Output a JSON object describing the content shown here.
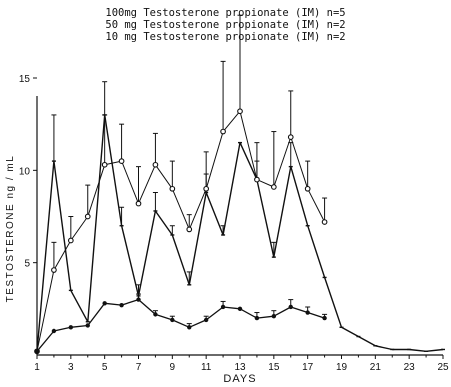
{
  "chart_data": {
    "type": "line",
    "title": "",
    "xlabel": "DAYS",
    "ylabel": "TESTOSTERONE  ng / mL",
    "xlim": [
      1,
      25
    ],
    "ylim": [
      0,
      15
    ],
    "x_ticks": [
      1,
      3,
      5,
      7,
      9,
      11,
      13,
      15,
      17,
      19,
      21,
      23,
      25
    ],
    "x_minor_ticks": [
      2,
      4,
      6,
      8,
      10,
      12,
      14,
      16,
      18,
      20,
      22,
      24
    ],
    "y_ticks": [
      5,
      10,
      15
    ],
    "grid": false,
    "legend": [
      "100mg  Testosterone  propionate (IM)  n=5",
      "50 mg  Testosterone  propionate (IM)  n=2",
      "10 mg  Testosterone  propionate (IM)  n=2"
    ],
    "series": [
      {
        "x": [
          1,
          2,
          3,
          4,
          5,
          6,
          7,
          8,
          9,
          10,
          11,
          12,
          13,
          14,
          15,
          16,
          17,
          18,
          19,
          20,
          21,
          22,
          23,
          24,
          25
        ],
        "values": [
          0.2,
          10.5,
          3.5,
          1.8,
          13.0,
          7.0,
          3.2,
          7.8,
          6.5,
          3.8,
          8.8,
          6.5,
          11.5,
          9.5,
          5.3,
          10.2,
          7.0,
          4.2,
          1.5,
          1.0,
          0.5,
          0.3,
          0.3,
          0.2,
          0.3
        ],
        "errors": [
          0,
          2.5,
          0,
          0,
          1.8,
          1.0,
          0.6,
          1.0,
          0.5,
          0.7,
          1.0,
          0.5,
          0,
          1.0,
          0.8,
          1.3,
          0,
          0,
          0,
          0,
          0,
          0,
          0,
          0,
          0
        ],
        "marker": "tick"
      },
      {
        "x": [
          1,
          2,
          3,
          4,
          5,
          6,
          7,
          8,
          9,
          10,
          11,
          12,
          13,
          14,
          15,
          16,
          17,
          18
        ],
        "values": [
          0.2,
          4.6,
          6.2,
          7.5,
          10.3,
          10.5,
          8.2,
          10.3,
          9.0,
          6.8,
          9.0,
          12.1,
          13.2,
          9.5,
          9.1,
          11.8,
          9.0,
          7.2
        ],
        "errors": [
          0,
          1.5,
          1.3,
          1.7,
          2.7,
          2.0,
          2.0,
          1.7,
          1.5,
          0.8,
          2.0,
          3.8,
          5.2,
          2.0,
          3.0,
          2.5,
          1.5,
          1.3
        ],
        "marker": "circle"
      },
      {
        "x": [
          1,
          2,
          3,
          4,
          5,
          6,
          7,
          8,
          9,
          10,
          11,
          12,
          13,
          14,
          15,
          16,
          17,
          18
        ],
        "values": [
          0.2,
          1.3,
          1.5,
          1.6,
          2.8,
          2.7,
          3.0,
          2.2,
          1.9,
          1.5,
          1.9,
          2.6,
          2.5,
          2.0,
          2.1,
          2.6,
          2.3,
          2.0
        ],
        "errors": [
          0,
          0,
          0,
          0,
          0,
          0,
          0.3,
          0.2,
          0.2,
          0.2,
          0.2,
          0.3,
          0,
          0.3,
          0.3,
          0.4,
          0.3,
          0.2
        ],
        "marker": "filled-circle"
      }
    ]
  }
}
